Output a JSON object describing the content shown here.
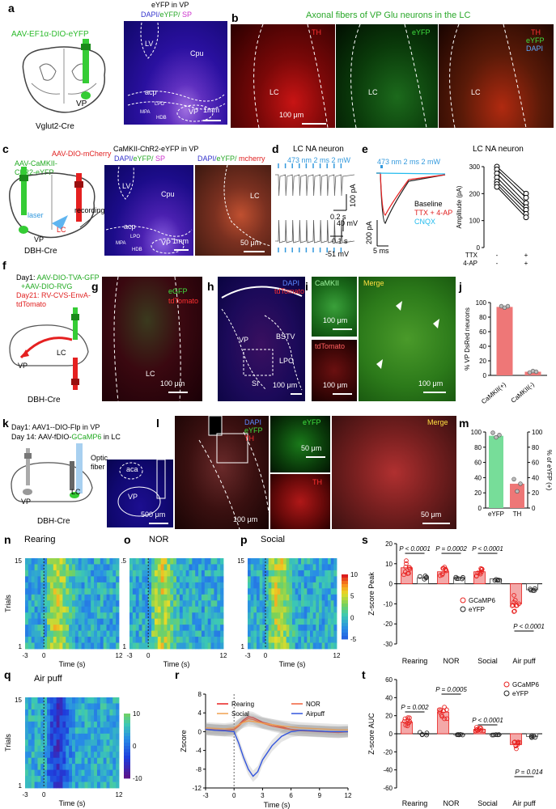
{
  "panels": {
    "a": "a",
    "b": "b",
    "c": "c",
    "d": "d",
    "e": "e",
    "f": "f",
    "g": "g",
    "h": "h",
    "i": "i",
    "j": "j",
    "k": "k",
    "l": "l",
    "m": "m",
    "n": "n",
    "o": "o",
    "p": "p",
    "q": "q",
    "r": "r",
    "s": "s",
    "t": "t"
  },
  "a": {
    "virus": "AAV-EF1α-DIO-eYFP",
    "vp": "VP",
    "mouse": "Vglut2-Cre",
    "img_title": "eYFP in VP",
    "stain_dapi": "DAPI/",
    "stain_eyfp": "eYFP/ ",
    "stain_sp": "SP",
    "lv": "LV",
    "cpu": "Cpu",
    "acp": "acp",
    "vp_img": "VP",
    "mpa": "MPA",
    "lpo": "LPO",
    "hdb": "HDB",
    "scale": "1mm"
  },
  "b": {
    "title": "Axonal fibers of VP Glu neurons in the LC",
    "th": "TH",
    "eyfp": "eYFP",
    "dapi": "DAPI",
    "lc": "LC",
    "scale": "100 μm"
  },
  "c": {
    "virus1": "AAV-DIO-mCherry",
    "virus2a": "AAV-CaMKII-",
    "virus2b": "ChR2-eYFP",
    "lasr": "laser",
    "recording": "recording",
    "vp": "VP",
    "lc": "LC",
    "mouse": "DBH-Cre",
    "img_title": "CaMKII-ChR2-eYFP in VP",
    "stain_dapi": "DAPI/",
    "stain_eyfp": "eYFP/ ",
    "stain_sp": "SP",
    "stain2_dapi": "DAPI/",
    "stain2_eyfp": "eYFP/ ",
    "stain2_mch": "mcherry",
    "lv": "LV",
    "cpu": "Cpu",
    "acp": "acp",
    "vp_img": "VP",
    "mpa": "MPA",
    "lpo": "LPO",
    "hdb": "HDB",
    "scale1": "1mm",
    "lc_img": "LC",
    "scale2": "50 μm"
  },
  "d": {
    "title": "LC NA neuron",
    "stim": "473 nm 2 ms 2 mW",
    "s1": "0.2 s",
    "s2": "100 pA",
    "s3": "40 mV",
    "s4": "0.1 s",
    "vrest": "-51 mV"
  },
  "e": {
    "title": "LC NA neuron",
    "stim": "473 nm 2 ms 2 mW",
    "baseline": "Baseline",
    "ttx": "TTX + 4-AP",
    "cnqx": "CNQX",
    "s1": "200 pA",
    "s2": "5 ms",
    "ylabel": "Amplitude (pA)",
    "yt0": "0",
    "yt1": "100",
    "yt2": "200",
    "yt3": "300",
    "ttx_lbl": "TTX",
    "ap_lbl": "4-AP",
    "minus": "-",
    "plus": "+"
  },
  "f": {
    "day1a": "Day1: ",
    "day1b": "AAV-DIO-TVA-GFP",
    "day1c": "+AAV-DIO-RVG",
    "day21a": "Day21: RV-CVS-EnvA-",
    "day21b": "tdTomato",
    "vp": "VP",
    "lc": "LC",
    "mouse": "DBH-Cre"
  },
  "g": {
    "egfp": "eGFP",
    "tdtomato": "tdTomato",
    "lc": "LC",
    "scale": "100 μm"
  },
  "h": {
    "dapi": "DAPI",
    "tdtomato": "tdTomato",
    "vp": "VP",
    "bstv": "BSTV",
    "lpo": "LPO",
    "si": "SI",
    "scale": "100 μm"
  },
  "i": {
    "camkii": "CaMKII",
    "tdtomato": "tdTomato",
    "merge": "Merge",
    "scale1": "100 μm",
    "scale2": "100 μm",
    "scale3": "100 μm"
  },
  "j": {
    "ylabel": "% VP DsRed neurons",
    "yt0": "0",
    "yt1": "20",
    "yt2": "40",
    "yt3": "60",
    "yt4": "80",
    "yt5": "100",
    "cat1": "CaMKII(+)",
    "cat2": "CaMKII(-)"
  },
  "k": {
    "day1a": "Day1: AAV1--DIO-Flp in VP",
    "day14a": "Day 14: AAV-fDIO-",
    "day14b": "GCaMP6",
    "day14c": " in LC",
    "fiber1": "Optic",
    "fiber2": "fiber",
    "vp": "VP",
    "lc": "LC",
    "mouse": "DBH-Cre"
  },
  "l": {
    "aca": "aca",
    "vp": "VP",
    "scale1": "500 μm",
    "dapi": "DAPI",
    "eyfp": "eYFP",
    "th": "TH",
    "scale2": "100 μm",
    "eyfp2": "eYFP",
    "scale3": "50 μm",
    "th2": "TH",
    "merge": "Merge",
    "scale4": "50 μm"
  },
  "m": {
    "ylabel_left": "% of TH (+)",
    "ylabel_right": "% of eYFP (+)",
    "yt0": "0",
    "yt1": "20",
    "yt2": "40",
    "yt3": "60",
    "yt4": "80",
    "yt5": "100",
    "cat1": "eYFP",
    "cat2": "TH"
  },
  "n": {
    "title": "Rearing",
    "ylabel": "Trials",
    "y15": "15",
    "y1": "1",
    "xlabel": "Time (s)",
    "xt1": "-3",
    "xt2": "0",
    "xt3": "12"
  },
  "o": {
    "title": "NOR",
    "y15": "15",
    "y1": "1",
    "xlabel": "Time (s)",
    "xt1": "-3",
    "xt2": "0",
    "xt3": "12"
  },
  "p": {
    "title": "Social",
    "y15": "15",
    "y1": "1",
    "xlabel": "Time (s)",
    "xt1": "-3",
    "xt2": "0",
    "xt3": "12",
    "cb10": "10",
    "cb5": "5",
    "cb0": "0",
    "cbm5": "-5"
  },
  "q": {
    "title": "Air puff",
    "ylabel": "Trials",
    "y15": "15",
    "y1": "1",
    "xlabel": "Time (s)",
    "xt1": "-3",
    "xt2": "0",
    "xt3": "12",
    "cb10": "10",
    "cb0": "0",
    "cbm10": "-10"
  },
  "r": {
    "ylabel": "Zscore",
    "xlabel": "Time (s)",
    "leg_rearing": "Rearing",
    "leg_nor": "NOR",
    "leg_social": "Social",
    "leg_airpuff": "Airpuff"
  },
  "s": {
    "ylabel": "Z-score Peak",
    "leg1": "GCaMP6",
    "leg2": "eYFP",
    "p1": "P < 0.0001",
    "p2": "P = 0.0002",
    "p3": "P < 0.0001",
    "p4": "P < 0.0001"
  },
  "t": {
    "ylabel": "Z-score AUC",
    "leg1": "GCaMP6",
    "leg2": "eYFP",
    "p1": "P = 0.002",
    "p2": "P = 0.0005",
    "p3": "P < 0.0001",
    "p4": "P = 0.014"
  },
  "colors": {
    "green": "#33cc33",
    "red": "#e8211f",
    "blue": "#3355dd",
    "orange": "#f0a050",
    "salmon": "#ee7777",
    "mint": "#77dd99"
  },
  "chart_data": [
    {
      "type": "scatter",
      "panel": "e",
      "title": "LC NA neuron",
      "ylabel": "Amplitude (pA)",
      "ylim": [
        0,
        300
      ],
      "categories": [
        "-",
        "+"
      ],
      "x_rows": [
        "TTX",
        "4-AP"
      ],
      "series": [
        {
          "values": [
            [
              300,
              200
            ]
          ]
        },
        {
          "values": [
            [
              290,
              185
            ]
          ]
        },
        {
          "values": [
            [
              275,
              165
            ]
          ]
        },
        {
          "values": [
            [
              260,
              150
            ]
          ]
        },
        {
          "values": [
            [
              245,
              140
            ]
          ]
        },
        {
          "values": [
            [
              235,
              125
            ]
          ]
        },
        {
          "values": [
            [
              225,
              112
            ]
          ]
        }
      ]
    },
    {
      "type": "bar",
      "panel": "j",
      "ylabel": "% VP DsRed neurons",
      "ylim": [
        0,
        100
      ],
      "categories": [
        "CaMKII(+)",
        "CaMKII(-)"
      ],
      "values": [
        94,
        5
      ],
      "points": [
        [
          95,
          93,
          95
        ],
        [
          4,
          6,
          5
        ]
      ]
    },
    {
      "type": "bar",
      "panel": "m",
      "ylabel": "% of TH (+)",
      "ylabel_right": "% of eYFP (+)",
      "ylim": [
        0,
        100
      ],
      "categories": [
        "eYFP",
        "TH"
      ],
      "values": [
        95,
        32
      ],
      "points": [
        [
          99,
          93,
          96
        ],
        [
          38,
          22,
          32
        ]
      ]
    },
    {
      "type": "heatmap",
      "panel": "n",
      "title": "Rearing",
      "ylabel": "Trials",
      "xlabel": "Time (s)",
      "xlim": [
        -3,
        12
      ],
      "ylim": [
        1,
        15
      ],
      "colorbar": [
        -5,
        10
      ]
    },
    {
      "type": "heatmap",
      "panel": "o",
      "title": "NOR",
      "xlabel": "Time (s)",
      "xlim": [
        -3,
        12
      ],
      "ylim": [
        1,
        15
      ]
    },
    {
      "type": "heatmap",
      "panel": "p",
      "title": "Social",
      "xlabel": "Time (s)",
      "xlim": [
        -3,
        12
      ],
      "ylim": [
        1,
        15
      ],
      "colorbar": [
        -5,
        10
      ]
    },
    {
      "type": "heatmap",
      "panel": "q",
      "title": "Air puff",
      "ylabel": "Trials",
      "xlabel": "Time (s)",
      "xlim": [
        -3,
        12
      ],
      "ylim": [
        1,
        15
      ],
      "colorbar": [
        -10,
        10
      ]
    },
    {
      "type": "line",
      "panel": "r",
      "ylabel": "Zscore",
      "xlabel": "Time (s)",
      "xlim": [
        -3,
        12
      ],
      "ylim": [
        -12,
        8
      ],
      "x_ticks": [
        "-3",
        "0",
        "3",
        "6",
        "9",
        "12"
      ],
      "y_ticks": [
        "8",
        "4",
        "0",
        "-4",
        "-8",
        "-12"
      ],
      "x": [
        -3,
        -2,
        -1,
        0,
        0.5,
        1,
        1.5,
        2,
        2.5,
        3,
        4,
        5,
        6,
        7,
        8,
        9,
        10,
        11,
        12
      ],
      "series": [
        {
          "name": "Rearing",
          "color": "#e8211f",
          "values": [
            0.5,
            0.4,
            0.3,
            0.5,
            1.5,
            2.5,
            3.2,
            3.0,
            2.5,
            2.0,
            1.5,
            1.0,
            0.5,
            0.3,
            0.2,
            0.1,
            0,
            -0.1,
            0
          ]
        },
        {
          "name": "NOR",
          "color": "#f0603a",
          "values": [
            0.5,
            0.3,
            0.2,
            0.4,
            1.2,
            2.2,
            2.8,
            2.6,
            2.2,
            1.8,
            1.2,
            0.8,
            0.4,
            0.2,
            0.1,
            0,
            -0.1,
            -0.2,
            0
          ]
        },
        {
          "name": "Social",
          "color": "#f0a050",
          "values": [
            0.8,
            0.7,
            0.6,
            0.8,
            1.5,
            2.0,
            2.3,
            2.2,
            2.0,
            1.8,
            1.5,
            1.2,
            1.0,
            0.8,
            0.7,
            0.6,
            0.5,
            0.4,
            0.4
          ]
        },
        {
          "name": "Airpuff",
          "color": "#3355dd",
          "values": [
            0.5,
            0.3,
            0.2,
            0,
            -2.5,
            -5.5,
            -8.0,
            -9.5,
            -8.5,
            -6.0,
            -3.0,
            -1.0,
            0,
            0.3,
            0.2,
            0.1,
            0,
            0,
            0
          ]
        }
      ]
    },
    {
      "type": "bar",
      "panel": "s",
      "ylabel": "Z-score Peak",
      "ylim": [
        -30,
        20
      ],
      "y_ticks": [
        "20",
        "10",
        "0",
        "-10",
        "-20",
        "-30"
      ],
      "categories": [
        "Rearing",
        "NOR",
        "Social",
        "Air puff"
      ],
      "series": [
        {
          "name": "GCaMP6",
          "values": [
            8,
            6,
            6,
            -10
          ]
        },
        {
          "name": "eYFP",
          "values": [
            3,
            3,
            2.5,
            -3
          ]
        }
      ]
    },
    {
      "type": "bar",
      "panel": "t",
      "ylabel": "Z-score AUC",
      "ylim": [
        -60,
        60
      ],
      "y_ticks": [
        "60",
        "40",
        "20",
        "0",
        "-20",
        "-40",
        "-60"
      ],
      "categories": [
        "Rearing",
        "NOR",
        "Social",
        "Air puff"
      ],
      "series": [
        {
          "name": "GCaMP6",
          "values": [
            13,
            24,
            5,
            -12
          ]
        },
        {
          "name": "eYFP",
          "values": [
            0,
            -1,
            -1,
            -3
          ]
        }
      ]
    }
  ]
}
